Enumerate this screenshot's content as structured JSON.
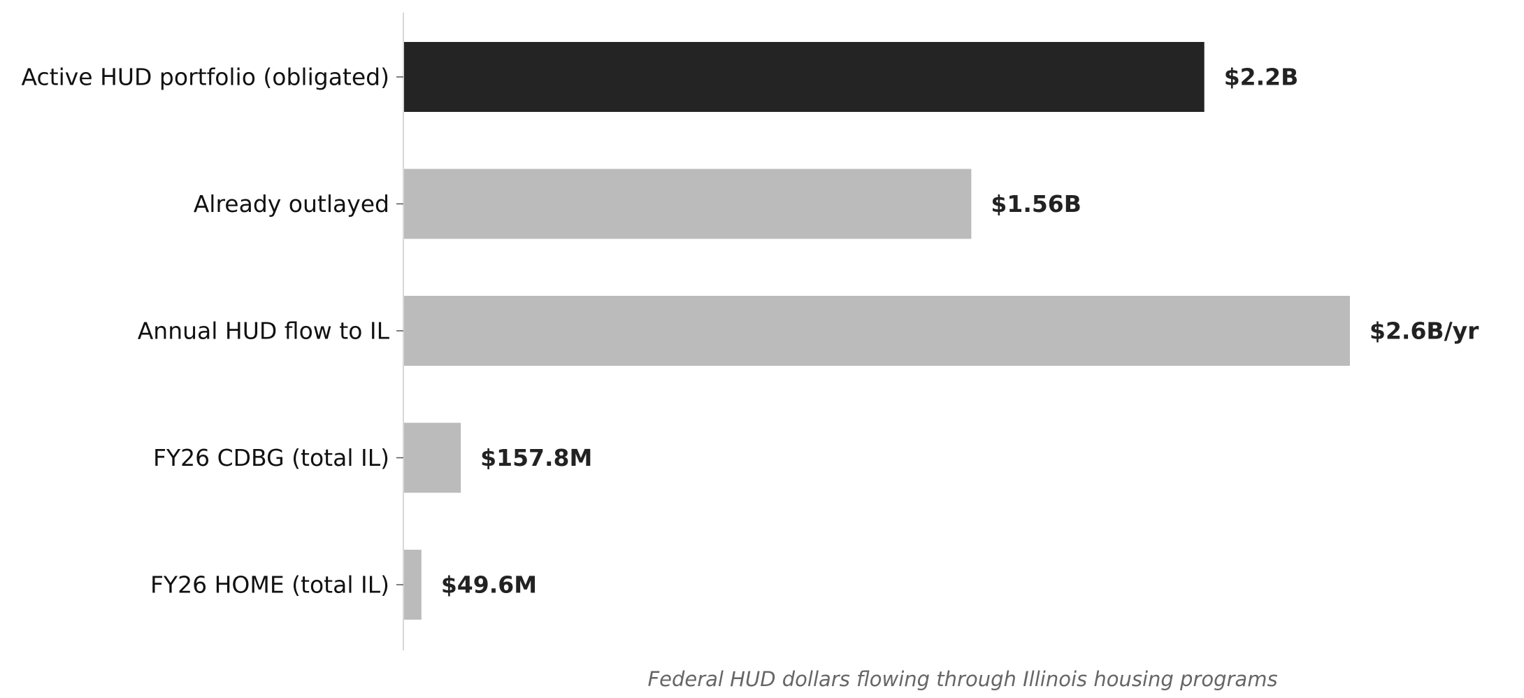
{
  "chart_data": {
    "type": "bar",
    "orientation": "horizontal",
    "categories": [
      "Active HUD portfolio (obligated)",
      "Already outlayed",
      "Annual HUD flow to IL",
      "FY26 CDBG (total IL)",
      "FY26 HOME (total IL)"
    ],
    "values": [
      2.2,
      1.56,
      2.6,
      0.1578,
      0.0496
    ],
    "value_unit": "billion USD",
    "data_labels": [
      "$2.2B",
      "$1.56B",
      "$2.6B/yr",
      "$157.8M",
      "$49.6M"
    ],
    "highlight_index": 0,
    "colors": {
      "highlight": "#242424",
      "default": "#bbbbbb",
      "axis": "#cccccc",
      "tick": "#555555"
    },
    "xlim": [
      0,
      2.6
    ],
    "xaxis_visible": false,
    "grid": false,
    "caption": "Federal HUD dollars flowing through Illinois housing programs"
  }
}
